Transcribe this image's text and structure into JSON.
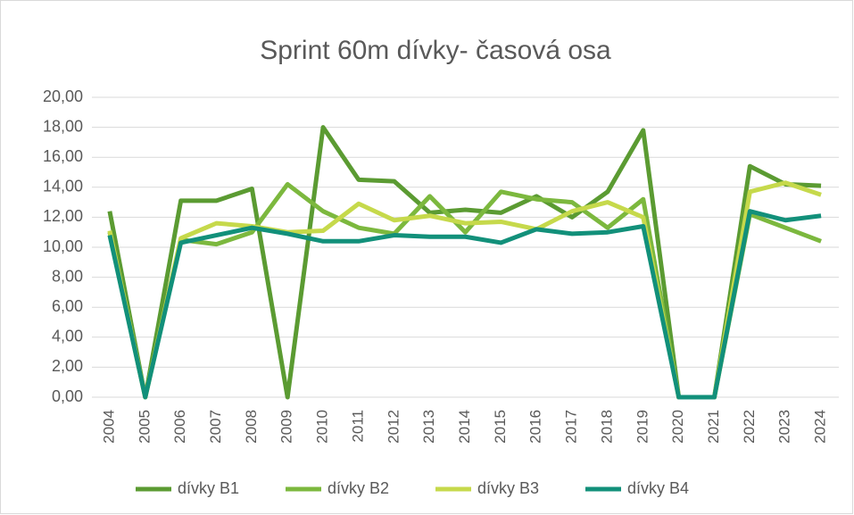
{
  "chart_data": {
    "type": "line",
    "title": "Sprint 60m dívky- časová osa",
    "categories": [
      "2004",
      "2005",
      "2006",
      "2007",
      "2008",
      "2009",
      "2010",
      "2011",
      "2012",
      "2013",
      "2014",
      "2015",
      "2016",
      "2017",
      "2018",
      "2019",
      "2020",
      "2021",
      "2022",
      "2023",
      "2024"
    ],
    "series": [
      {
        "name": "dívky B1",
        "color": "#5b9b32",
        "values": [
          12.4,
          0,
          13.1,
          13.1,
          13.9,
          0,
          18.0,
          14.5,
          14.4,
          12.3,
          12.5,
          12.3,
          13.4,
          12.0,
          13.7,
          17.8,
          0,
          0,
          15.4,
          14.2,
          14.1
        ]
      },
      {
        "name": "dívky B2",
        "color": "#7cb83e",
        "values": [
          11.0,
          0,
          10.5,
          10.2,
          11.0,
          14.2,
          12.4,
          11.3,
          10.9,
          13.4,
          11.0,
          13.7,
          13.2,
          13.0,
          11.3,
          13.2,
          0,
          0,
          12.2,
          11.3,
          10.4
        ]
      },
      {
        "name": "dívky B3",
        "color": "#c6d94b",
        "values": [
          11.1,
          0,
          10.6,
          11.6,
          11.4,
          11.0,
          11.1,
          12.9,
          11.8,
          12.1,
          11.6,
          11.7,
          11.2,
          12.4,
          13.0,
          12.0,
          0,
          0,
          13.7,
          14.3,
          13.5
        ]
      },
      {
        "name": "dívky B4",
        "color": "#12907a",
        "values": [
          10.8,
          0,
          10.3,
          10.8,
          11.3,
          10.9,
          10.4,
          10.4,
          10.8,
          10.7,
          10.7,
          10.3,
          11.2,
          10.9,
          11.0,
          11.4,
          0,
          0,
          12.4,
          11.8,
          12.1
        ]
      }
    ],
    "ylim": [
      0,
      20
    ],
    "yticks": [
      {
        "value": 0,
        "label": "0,00"
      },
      {
        "value": 2,
        "label": "2,00"
      },
      {
        "value": 4,
        "label": "4,00"
      },
      {
        "value": 6,
        "label": "6,00"
      },
      {
        "value": 8,
        "label": "8,00"
      },
      {
        "value": 10,
        "label": "10,00"
      },
      {
        "value": 12,
        "label": "12,00"
      },
      {
        "value": 14,
        "label": "14,00"
      },
      {
        "value": 16,
        "label": "16,00"
      },
      {
        "value": 18,
        "label": "18,00"
      },
      {
        "value": 20,
        "label": "20,00"
      }
    ],
    "grid": true,
    "legend": "bottom"
  }
}
